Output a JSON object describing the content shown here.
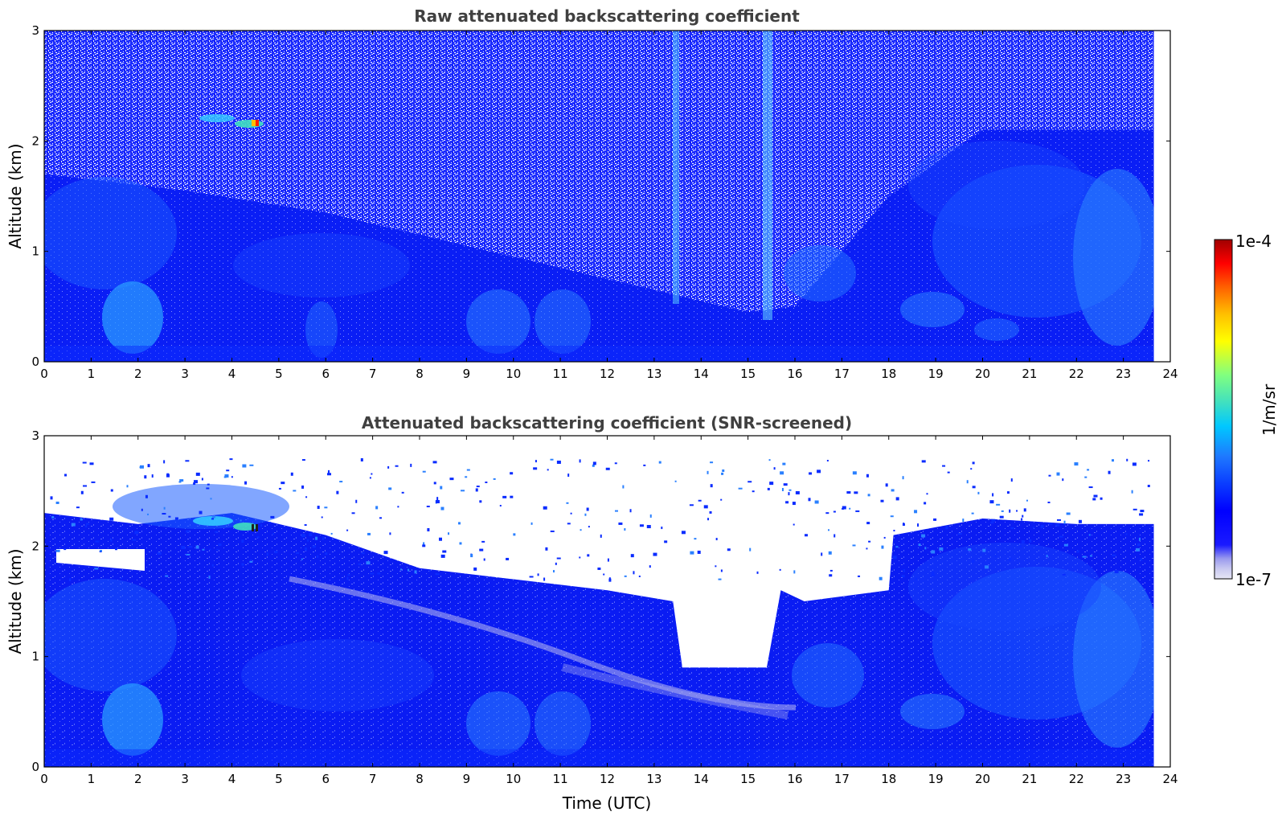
{
  "chart_data": [
    {
      "type": "heatmap",
      "title": "Raw attenuated backscattering coefficient",
      "xlabel": "",
      "ylabel": "Altitude (km)",
      "xlim": [
        0,
        24
      ],
      "ylim": [
        0,
        3
      ],
      "xticks": [
        "0",
        "1",
        "2",
        "3",
        "4",
        "5",
        "6",
        "7",
        "8",
        "9",
        "10",
        "11",
        "12",
        "13",
        "14",
        "15",
        "16",
        "17",
        "18",
        "19",
        "20",
        "21",
        "22",
        "23",
        "24"
      ],
      "yticks": [
        "0",
        "1",
        "2",
        "3"
      ],
      "data_time_end": 23.65,
      "screened": false,
      "features": [
        {
          "kind": "boundary_layer_top",
          "x": [
            0,
            3,
            6,
            9,
            12,
            15,
            16,
            18,
            20,
            22,
            23.65
          ],
          "y": [
            1.7,
            1.55,
            1.35,
            1.05,
            0.75,
            0.45,
            0.5,
            1.5,
            2.1,
            2.1,
            2.1
          ]
        },
        {
          "kind": "cloud",
          "x": [
            3.2,
            4.6
          ],
          "y": [
            2.15,
            2.25
          ],
          "peak_value": "1e-4"
        },
        {
          "kind": "noise_column",
          "x": 13.5
        },
        {
          "kind": "noise_column",
          "x": 15.5
        }
      ]
    },
    {
      "type": "heatmap",
      "title": "Attenuated backscattering coefficient (SNR-screened)",
      "xlabel": "Time (UTC)",
      "ylabel": "Altitude (km)",
      "xlim": [
        0,
        24
      ],
      "ylim": [
        0,
        3
      ],
      "xticks": [
        "0",
        "1",
        "2",
        "3",
        "4",
        "5",
        "6",
        "7",
        "8",
        "9",
        "10",
        "11",
        "12",
        "13",
        "14",
        "15",
        "16",
        "17",
        "18",
        "19",
        "20",
        "21",
        "22",
        "23",
        "24"
      ],
      "yticks": [
        "0",
        "1",
        "2",
        "3"
      ],
      "data_time_end": 23.65,
      "screened": true,
      "features": [
        {
          "kind": "valid_data_top",
          "x": [
            0,
            2,
            4,
            6,
            8,
            10,
            12,
            13.4,
            13.6,
            15.4,
            15.7,
            16.2,
            18,
            18.1,
            20,
            22,
            23.65
          ],
          "y": [
            2.3,
            2.2,
            2.3,
            2.1,
            1.8,
            1.7,
            1.6,
            1.5,
            0.9,
            0.9,
            1.6,
            1.5,
            1.6,
            2.1,
            2.25,
            2.2,
            2.2
          ]
        },
        {
          "kind": "cloud",
          "x": [
            3.2,
            4.6
          ],
          "y": [
            2.15,
            2.25
          ],
          "peak_value": "1e-4"
        },
        {
          "kind": "clear_gap",
          "x": [
            0.5,
            1.8
          ],
          "y": [
            1.85,
            2.0
          ]
        }
      ]
    }
  ],
  "colorbar": {
    "label": "1/m/sr",
    "max_label": "1e-4",
    "min_label": "1e-7",
    "colormap": [
      "#e6e6f5",
      "#c8c8f0",
      "#9999ee",
      "#1a1aff",
      "#0000ff",
      "#0a3cff",
      "#1e78ff",
      "#00c8ff",
      "#40e0c0",
      "#80ff80",
      "#ffff00",
      "#ffc000",
      "#ff6000",
      "#ff0000",
      "#a00000"
    ]
  },
  "colors": {
    "deep_blue": "#0000f0",
    "mid_blue": "#1447ff",
    "light_blue": "#2e8cff",
    "cyan": "#30c8ff",
    "noise_white": "#ffffff"
  }
}
